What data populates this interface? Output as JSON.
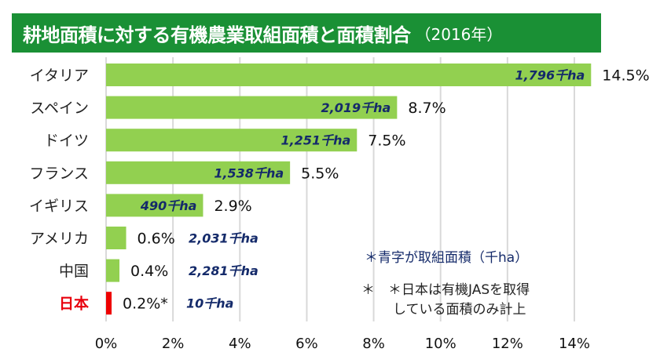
{
  "chart_data": {
    "type": "bar",
    "orientation": "horizontal",
    "title": "耕地面積に対する有機農業取組面積と面積割合",
    "subtitle": "（2016年）",
    "categories": [
      "イタリア",
      "スペイン",
      "ドイツ",
      "フランス",
      "イギリス",
      "アメリカ",
      "中国",
      "日本"
    ],
    "values": [
      14.5,
      8.7,
      7.5,
      5.5,
      2.9,
      0.6,
      0.4,
      0.2
    ],
    "value_labels": [
      "14.5%",
      "8.7%",
      "7.5%",
      "5.5%",
      "2.9%",
      "0.6%",
      "0.4%",
      "0.2%*"
    ],
    "area_labels": [
      "1,796千ha",
      "2,019千ha",
      "1,251千ha",
      "1,538千ha",
      "490千ha",
      "2,031千ha",
      "2,281千ha",
      "10千ha"
    ],
    "highlight_category": "日本",
    "xlim": [
      0,
      14
    ],
    "xticks": [
      0,
      2,
      4,
      6,
      8,
      10,
      12,
      14
    ],
    "xtick_labels": [
      "0%",
      "2%",
      "4%",
      "6%",
      "8%",
      "10%",
      "12%",
      "14%"
    ],
    "xlabel": "",
    "ylabel": "",
    "grid": true,
    "colors": {
      "bar": "#92d050",
      "highlight": "#ee0000",
      "title_bg": "#1a9035",
      "area_text": "#142a6a",
      "grid": "#d9d9d9"
    },
    "notes": [
      "＊青字が取組面積（千ha）",
      "＊　＊日本は有機JASを取得",
      "している面積のみ計上"
    ]
  }
}
